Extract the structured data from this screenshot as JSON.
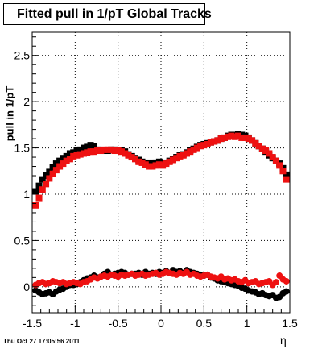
{
  "chart_data": {
    "type": "scatter",
    "title": "Fitted pull in 1/pT  Global Tracks",
    "ylabel": "pull in 1/pT",
    "xlabel": "η",
    "xlim": [
      -1.5,
      1.5
    ],
    "ylim": [
      -0.28,
      2.75
    ],
    "x_ticks": [
      -1.5,
      -1,
      -0.5,
      0,
      0.5,
      1,
      1.5
    ],
    "x_tick_labels": [
      "-1.5",
      "-1",
      "-0.5",
      "0",
      "0.5",
      "1",
      "1.5"
    ],
    "y_ticks": [
      0,
      0.5,
      1,
      1.5,
      2,
      2.5
    ],
    "y_tick_labels": [
      "0",
      "0.5",
      "1",
      "1.5",
      "2",
      "2.5"
    ],
    "grid": true,
    "series": [
      {
        "marker": "square",
        "color": "#000000",
        "x": [
          -1.46,
          -1.42,
          -1.38,
          -1.34,
          -1.3,
          -1.26,
          -1.22,
          -1.18,
          -1.14,
          -1.1,
          -1.06,
          -1.02,
          -0.98,
          -0.94,
          -0.9,
          -0.86,
          -0.82,
          -0.78,
          -0.74,
          -0.7,
          -0.66,
          -0.62,
          -0.58,
          -0.54,
          -0.5,
          -0.46,
          -0.42,
          -0.38,
          -0.34,
          -0.3,
          -0.26,
          -0.22,
          -0.18,
          -0.14,
          -0.1,
          -0.06,
          -0.02,
          0.02,
          0.06,
          0.1,
          0.14,
          0.18,
          0.22,
          0.26,
          0.3,
          0.34,
          0.38,
          0.42,
          0.46,
          0.5,
          0.54,
          0.58,
          0.62,
          0.66,
          0.7,
          0.74,
          0.78,
          0.82,
          0.86,
          0.9,
          0.94,
          0.98,
          1.02,
          1.06,
          1.1,
          1.14,
          1.18,
          1.22,
          1.26,
          1.3,
          1.34,
          1.38,
          1.42,
          1.46
        ],
        "y": [
          1.03,
          1.09,
          1.16,
          1.2,
          1.24,
          1.29,
          1.33,
          1.36,
          1.39,
          1.41,
          1.44,
          1.45,
          1.47,
          1.48,
          1.5,
          1.51,
          1.53,
          1.52,
          1.48,
          1.47,
          1.47,
          1.47,
          1.48,
          1.48,
          1.47,
          1.47,
          1.46,
          1.43,
          1.41,
          1.39,
          1.37,
          1.35,
          1.34,
          1.33,
          1.34,
          1.34,
          1.35,
          1.33,
          1.34,
          1.36,
          1.38,
          1.4,
          1.42,
          1.43,
          1.45,
          1.47,
          1.49,
          1.51,
          1.53,
          1.54,
          1.55,
          1.56,
          1.57,
          1.58,
          1.6,
          1.61,
          1.63,
          1.64,
          1.64,
          1.65,
          1.64,
          1.63,
          1.61,
          1.58,
          1.55,
          1.52,
          1.49,
          1.46,
          1.42,
          1.39,
          1.36,
          1.33,
          1.28,
          1.21
        ]
      },
      {
        "marker": "square",
        "color": "#ee1111",
        "x": [
          -1.46,
          -1.42,
          -1.38,
          -1.34,
          -1.3,
          -1.26,
          -1.22,
          -1.18,
          -1.14,
          -1.1,
          -1.06,
          -1.02,
          -0.98,
          -0.94,
          -0.9,
          -0.86,
          -0.82,
          -0.78,
          -0.74,
          -0.7,
          -0.66,
          -0.62,
          -0.58,
          -0.54,
          -0.5,
          -0.46,
          -0.42,
          -0.38,
          -0.34,
          -0.3,
          -0.26,
          -0.22,
          -0.18,
          -0.14,
          -0.1,
          -0.06,
          -0.02,
          0.02,
          0.06,
          0.1,
          0.14,
          0.18,
          0.22,
          0.26,
          0.3,
          0.34,
          0.38,
          0.42,
          0.46,
          0.5,
          0.54,
          0.58,
          0.62,
          0.66,
          0.7,
          0.74,
          0.78,
          0.82,
          0.86,
          0.9,
          0.94,
          0.98,
          1.02,
          1.06,
          1.1,
          1.14,
          1.18,
          1.22,
          1.26,
          1.3,
          1.34,
          1.38,
          1.42,
          1.46
        ],
        "y": [
          0.88,
          0.96,
          1.05,
          1.11,
          1.17,
          1.22,
          1.26,
          1.3,
          1.33,
          1.36,
          1.38,
          1.41,
          1.42,
          1.43,
          1.44,
          1.45,
          1.46,
          1.46,
          1.47,
          1.47,
          1.48,
          1.48,
          1.48,
          1.47,
          1.47,
          1.46,
          1.44,
          1.42,
          1.4,
          1.38,
          1.35,
          1.34,
          1.32,
          1.3,
          1.3,
          1.31,
          1.32,
          1.31,
          1.33,
          1.35,
          1.37,
          1.39,
          1.41,
          1.42,
          1.44,
          1.46,
          1.48,
          1.5,
          1.52,
          1.53,
          1.54,
          1.56,
          1.57,
          1.58,
          1.6,
          1.61,
          1.62,
          1.63,
          1.62,
          1.63,
          1.61,
          1.61,
          1.6,
          1.58,
          1.55,
          1.52,
          1.49,
          1.47,
          1.44,
          1.4,
          1.36,
          1.31,
          1.25,
          1.16
        ]
      },
      {
        "marker": "circle",
        "color": "#000000",
        "x": [
          -1.46,
          -1.42,
          -1.38,
          -1.34,
          -1.3,
          -1.26,
          -1.22,
          -1.18,
          -1.14,
          -1.1,
          -1.06,
          -1.02,
          -0.98,
          -0.94,
          -0.9,
          -0.86,
          -0.82,
          -0.78,
          -0.74,
          -0.7,
          -0.66,
          -0.62,
          -0.58,
          -0.54,
          -0.5,
          -0.46,
          -0.42,
          -0.38,
          -0.34,
          -0.3,
          -0.26,
          -0.22,
          -0.18,
          -0.14,
          -0.1,
          -0.06,
          -0.02,
          0.02,
          0.06,
          0.1,
          0.14,
          0.18,
          0.22,
          0.26,
          0.3,
          0.34,
          0.38,
          0.42,
          0.46,
          0.5,
          0.54,
          0.58,
          0.62,
          0.66,
          0.7,
          0.74,
          0.78,
          0.82,
          0.86,
          0.9,
          0.94,
          0.98,
          1.02,
          1.06,
          1.1,
          1.14,
          1.18,
          1.22,
          1.26,
          1.3,
          1.34,
          1.38,
          1.42,
          1.46
        ],
        "y": [
          -0.04,
          -0.06,
          -0.08,
          -0.07,
          -0.06,
          -0.08,
          -0.05,
          -0.03,
          -0.02,
          0.0,
          0.02,
          0.02,
          0.03,
          0.05,
          0.07,
          0.09,
          0.1,
          0.12,
          0.1,
          0.11,
          0.14,
          0.16,
          0.13,
          0.14,
          0.15,
          0.16,
          0.15,
          0.13,
          0.14,
          0.14,
          0.15,
          0.13,
          0.16,
          0.14,
          0.15,
          0.14,
          0.16,
          0.15,
          0.17,
          0.15,
          0.18,
          0.16,
          0.17,
          0.15,
          0.18,
          0.16,
          0.15,
          0.14,
          0.13,
          0.12,
          0.13,
          0.1,
          0.09,
          0.07,
          0.06,
          0.05,
          0.04,
          0.03,
          0.02,
          0.01,
          -0.01,
          -0.02,
          -0.04,
          -0.05,
          -0.06,
          -0.08,
          -0.07,
          -0.09,
          -0.1,
          -0.09,
          -0.12,
          -0.11,
          -0.07,
          -0.05
        ]
      },
      {
        "marker": "circle",
        "color": "#ee1111",
        "x": [
          -1.46,
          -1.42,
          -1.38,
          -1.34,
          -1.3,
          -1.26,
          -1.22,
          -1.18,
          -1.14,
          -1.1,
          -1.06,
          -1.02,
          -0.98,
          -0.94,
          -0.9,
          -0.86,
          -0.82,
          -0.78,
          -0.74,
          -0.7,
          -0.66,
          -0.62,
          -0.58,
          -0.54,
          -0.5,
          -0.46,
          -0.42,
          -0.38,
          -0.34,
          -0.3,
          -0.26,
          -0.22,
          -0.18,
          -0.14,
          -0.1,
          -0.06,
          -0.02,
          0.02,
          0.06,
          0.1,
          0.14,
          0.18,
          0.22,
          0.26,
          0.3,
          0.34,
          0.38,
          0.42,
          0.46,
          0.5,
          0.54,
          0.58,
          0.62,
          0.66,
          0.7,
          0.74,
          0.78,
          0.82,
          0.86,
          0.9,
          0.94,
          0.98,
          1.02,
          1.06,
          1.1,
          1.14,
          1.18,
          1.22,
          1.26,
          1.3,
          1.34,
          1.38,
          1.42,
          1.46
        ],
        "y": [
          0.02,
          0.04,
          0.05,
          0.03,
          0.04,
          0.06,
          0.05,
          0.04,
          0.05,
          0.03,
          0.04,
          0.05,
          0.04,
          0.03,
          0.05,
          0.06,
          0.08,
          0.1,
          0.09,
          0.11,
          0.12,
          0.11,
          0.13,
          0.12,
          0.11,
          0.13,
          0.12,
          0.13,
          0.14,
          0.12,
          0.13,
          0.14,
          0.12,
          0.13,
          0.14,
          0.15,
          0.13,
          0.14,
          0.16,
          0.15,
          0.14,
          0.13,
          0.15,
          0.14,
          0.16,
          0.13,
          0.14,
          0.12,
          0.11,
          0.12,
          0.13,
          0.11,
          0.1,
          0.09,
          0.11,
          0.08,
          0.09,
          0.07,
          0.08,
          0.06,
          0.05,
          0.07,
          0.04,
          0.05,
          0.06,
          0.03,
          0.04,
          0.05,
          0.06,
          0.02,
          0.05,
          0.12,
          0.08,
          0.06
        ]
      }
    ],
    "datestamp": "Thu Oct 27 17:05:56 2011"
  }
}
